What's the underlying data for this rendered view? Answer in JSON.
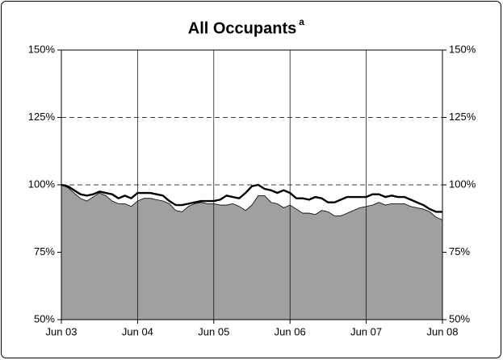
{
  "chart_data": {
    "type": "area_line",
    "title": "All Occupants",
    "title_superscript": "a",
    "categories": [
      "Jun 03",
      null,
      null,
      null,
      null,
      null,
      null,
      null,
      null,
      null,
      null,
      null,
      "Jun 04",
      null,
      null,
      null,
      null,
      null,
      null,
      null,
      null,
      null,
      null,
      null,
      "Jun 05",
      null,
      null,
      null,
      null,
      null,
      null,
      null,
      null,
      null,
      null,
      null,
      "Jun 06",
      null,
      null,
      null,
      null,
      null,
      null,
      null,
      null,
      null,
      null,
      null,
      "Jun 07",
      null,
      null,
      null,
      null,
      null,
      null,
      null,
      null,
      null,
      null,
      null,
      "Jun 08"
    ],
    "series": [
      {
        "kind": "area",
        "color": "#a0a0a0",
        "values": [
          100,
          99,
          97,
          95,
          94,
          95.5,
          97,
          96,
          94,
          93,
          93,
          92,
          94,
          95,
          95,
          94.5,
          94,
          93,
          90.5,
          90,
          92,
          93,
          93.5,
          93,
          93,
          92.5,
          92.5,
          93,
          92,
          90.5,
          92.5,
          96,
          96,
          93.5,
          93,
          91.5,
          92.5,
          91,
          89.5,
          89.5,
          89,
          90.5,
          90,
          88.5,
          88.5,
          89.5,
          90.5,
          91.5,
          92,
          92.5,
          93.5,
          92.5,
          93,
          93,
          93,
          92,
          91.5,
          91,
          90,
          88,
          87
        ]
      },
      {
        "kind": "line",
        "color": "#000000",
        "values": [
          100,
          99.5,
          98,
          96.5,
          96,
          96.5,
          97.5,
          97,
          96.5,
          95,
          96,
          95,
          97,
          97,
          97,
          96.5,
          96,
          94,
          92.5,
          92.5,
          93,
          93.5,
          94,
          94,
          94,
          94.5,
          96,
          95.5,
          95,
          97,
          99.5,
          100,
          98.5,
          98,
          97,
          98,
          97,
          95,
          95,
          94.5,
          95.5,
          95,
          93.5,
          93.5,
          94.5,
          95.5,
          95.5,
          95.5,
          95.5,
          96.5,
          96.5,
          95.5,
          96,
          95.5,
          95.5,
          94.5,
          93.5,
          92.5,
          91,
          90,
          90
        ]
      }
    ],
    "ylim": [
      50,
      150
    ],
    "yticks": [
      {
        "value": 50,
        "label": "50%"
      },
      {
        "value": 75,
        "label": "75%"
      },
      {
        "value": 100,
        "label": "100%"
      },
      {
        "value": 125,
        "label": "125%"
      },
      {
        "value": 150,
        "label": "150%"
      }
    ],
    "grid": true
  }
}
